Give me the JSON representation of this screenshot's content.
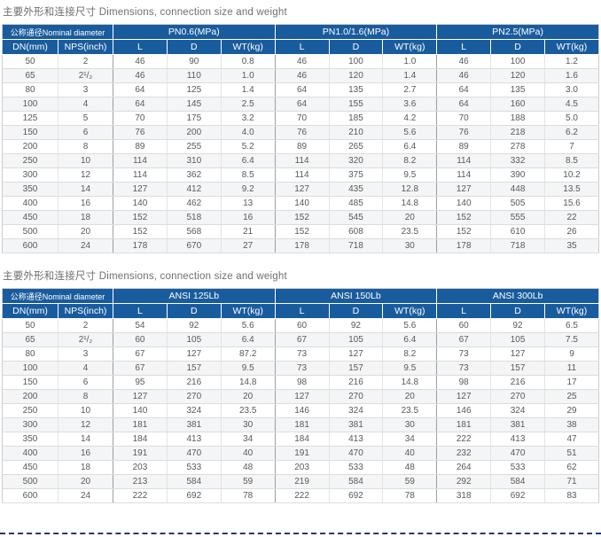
{
  "colors": {
    "header_blue": "#195c9e",
    "dashed_divider_navy": "#25337f",
    "stripe_gray": "#f3f5f7",
    "title_gray": "#6f6f6f"
  },
  "tables": [
    {
      "title": "主要外形和连接尺寸 Dimensions, connection size and weight",
      "group_headers": [
        {
          "label": "公称通径Nominal diameter",
          "colspan": 2
        },
        {
          "label": "PN0.6(MPa)",
          "colspan": 3
        },
        {
          "label": "PN1.0/1.6(MPa)",
          "colspan": 3
        },
        {
          "label": "PN2.5(MPa)",
          "colspan": 3
        }
      ],
      "sub_headers": [
        "DN(mm)",
        "NPS(inch)",
        "L",
        "D",
        "WT(kg)",
        "L",
        "D",
        "WT(kg)",
        "L",
        "D",
        "WT(kg)"
      ],
      "rows": [
        [
          "50",
          "2",
          "46",
          "90",
          "0.8",
          "46",
          "100",
          "1.0",
          "46",
          "100",
          "1.2"
        ],
        [
          "65",
          "2¹/₂",
          "46",
          "110",
          "1.0",
          "46",
          "120",
          "1.4",
          "46",
          "120",
          "1.6"
        ],
        [
          "80",
          "3",
          "64",
          "125",
          "1.4",
          "64",
          "135",
          "2.7",
          "64",
          "135",
          "3.0"
        ],
        [
          "100",
          "4",
          "64",
          "145",
          "2.5",
          "64",
          "155",
          "3.6",
          "64",
          "160",
          "4.5"
        ],
        [
          "125",
          "5",
          "70",
          "175",
          "3.2",
          "70",
          "185",
          "4.2",
          "70",
          "188",
          "5.0"
        ],
        [
          "150",
          "6",
          "76",
          "200",
          "4.0",
          "76",
          "210",
          "5.6",
          "76",
          "218",
          "6.2"
        ],
        [
          "200",
          "8",
          "89",
          "255",
          "5.2",
          "89",
          "265",
          "6.4",
          "89",
          "278",
          "7"
        ],
        [
          "250",
          "10",
          "114",
          "310",
          "6.4",
          "114",
          "320",
          "8.2",
          "114",
          "332",
          "8.5"
        ],
        [
          "300",
          "12",
          "114",
          "362",
          "8.5",
          "114",
          "375",
          "9.5",
          "114",
          "390",
          "10.2"
        ],
        [
          "350",
          "14",
          "127",
          "412",
          "9.2",
          "127",
          "435",
          "12.8",
          "127",
          "448",
          "13.5"
        ],
        [
          "400",
          "16",
          "140",
          "462",
          "13",
          "140",
          "485",
          "14.8",
          "140",
          "505",
          "15.6"
        ],
        [
          "450",
          "18",
          "152",
          "518",
          "16",
          "152",
          "545",
          "20",
          "152",
          "555",
          "22"
        ],
        [
          "500",
          "20",
          "152",
          "568",
          "21",
          "152",
          "608",
          "23.5",
          "152",
          "610",
          "26"
        ],
        [
          "600",
          "24",
          "178",
          "670",
          "27",
          "178",
          "718",
          "30",
          "178",
          "718",
          "35"
        ]
      ]
    },
    {
      "title": "主要外形和连接尺寸 Dimensions, connection size and weight",
      "group_headers": [
        {
          "label": "公称通径Nominal diameter",
          "colspan": 2
        },
        {
          "label": "ANSI 125Lb",
          "colspan": 3
        },
        {
          "label": "ANSI 150Lb",
          "colspan": 3
        },
        {
          "label": "ANSI 300Lb",
          "colspan": 3
        }
      ],
      "sub_headers": [
        "DN(mm)",
        "NPS(inch)",
        "L",
        "D",
        "WT(kg)",
        "L",
        "D",
        "WT(kg)",
        "L",
        "D",
        "WT(kg)"
      ],
      "rows": [
        [
          "50",
          "2",
          "54",
          "92",
          "5.6",
          "60",
          "92",
          "5.6",
          "60",
          "92",
          "6.5"
        ],
        [
          "65",
          "2¹/₂",
          "60",
          "105",
          "6.4",
          "67",
          "105",
          "6.4",
          "67",
          "105",
          "7.5"
        ],
        [
          "80",
          "3",
          "67",
          "127",
          "87.2",
          "73",
          "127",
          "8.2",
          "73",
          "127",
          "9"
        ],
        [
          "100",
          "4",
          "67",
          "157",
          "9.5",
          "73",
          "157",
          "9.5",
          "73",
          "157",
          "11"
        ],
        [
          "150",
          "6",
          "95",
          "216",
          "14.8",
          "98",
          "216",
          "14.8",
          "98",
          "216",
          "17"
        ],
        [
          "200",
          "8",
          "127",
          "270",
          "20",
          "127",
          "270",
          "20",
          "127",
          "270",
          "25"
        ],
        [
          "250",
          "10",
          "140",
          "324",
          "23.5",
          "146",
          "324",
          "23.5",
          "146",
          "324",
          "29"
        ],
        [
          "300",
          "12",
          "181",
          "381",
          "30",
          "181",
          "381",
          "30",
          "181",
          "381",
          "38"
        ],
        [
          "350",
          "14",
          "184",
          "413",
          "34",
          "184",
          "413",
          "34",
          "222",
          "413",
          "47"
        ],
        [
          "400",
          "16",
          "191",
          "470",
          "40",
          "191",
          "470",
          "40",
          "232",
          "470",
          "51"
        ],
        [
          "450",
          "18",
          "203",
          "533",
          "48",
          "203",
          "533",
          "48",
          "264",
          "533",
          "62"
        ],
        [
          "500",
          "20",
          "213",
          "584",
          "59",
          "219",
          "584",
          "59",
          "292",
          "584",
          "71"
        ],
        [
          "600",
          "24",
          "222",
          "692",
          "78",
          "222",
          "692",
          "78",
          "318",
          "692",
          "83"
        ]
      ]
    }
  ]
}
